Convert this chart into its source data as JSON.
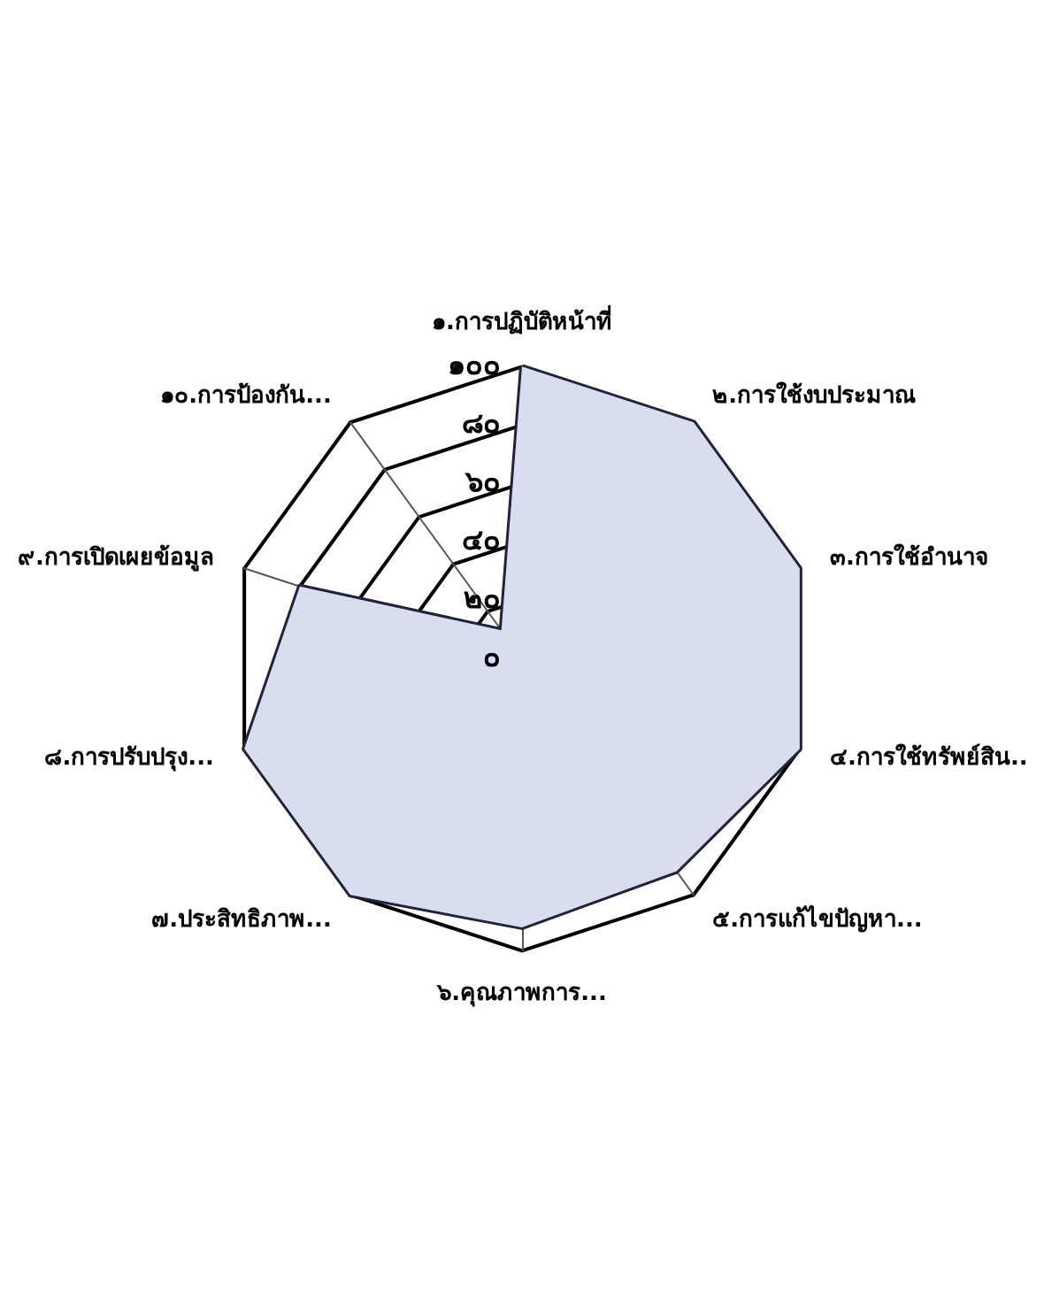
{
  "chart_data": {
    "type": "radar",
    "categories": [
      "๑.การปฏิบัติหน้าที่",
      "๒.การใช้งบประมาณ",
      "๓.การใช้อำนาจ",
      "๔.การใช้ทรัพย์สิน...",
      "๕.การแก้ไขปัญหา...",
      "๖.คุณภาพการ...",
      "๗.ประสิทธิภาพ...",
      "๘.การปรับปรุง...",
      "๙.การเปิดเผยข้อมูล",
      "๑๐.การป้องกัน..."
    ],
    "series": [
      {
        "color": "#d9ddf0",
        "values": [
          100,
          100,
          100,
          100,
          90,
          92,
          100,
          100,
          80,
          12
        ]
      }
    ],
    "ylim": [
      0,
      100
    ],
    "yticks": [
      {
        "value": 0,
        "label": "๐"
      },
      {
        "value": 20,
        "label": "๒๐"
      },
      {
        "value": 40,
        "label": "๔๐"
      },
      {
        "value": 60,
        "label": "๖๐"
      },
      {
        "value": 80,
        "label": "๘๐"
      },
      {
        "value": 100,
        "label": "๑๐๐"
      }
    ],
    "marker": "none"
  }
}
